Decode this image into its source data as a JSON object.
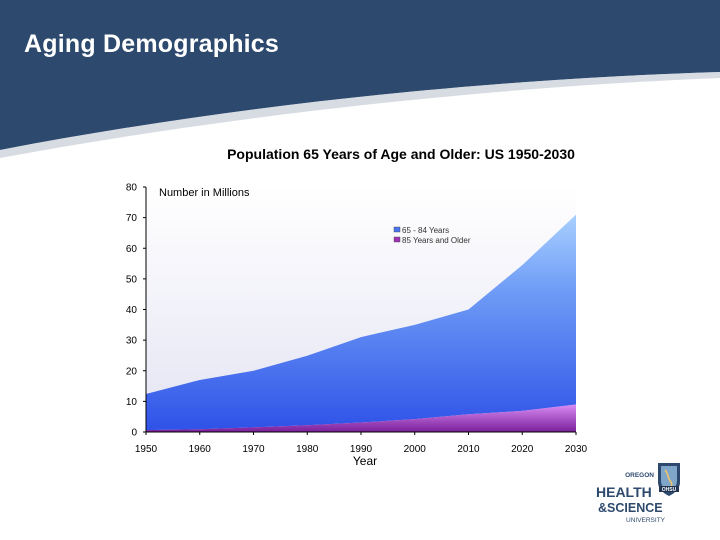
{
  "slide": {
    "title": "Aging Demographics"
  },
  "logo": {
    "name": "ohsu-logo",
    "text_lines": [
      "OREGON",
      "HEALTH",
      "&SCIENCE",
      "UNIVERSITY"
    ],
    "shield_text": "OHSU"
  },
  "colors": {
    "header": "#2d4a6e",
    "series_65_84": "#4a73ef",
    "series_85_plus": "#9b33b5",
    "plot_bg": "#f7f7fb"
  },
  "chart_data": {
    "type": "area",
    "stacked": true,
    "title": "Population 65 Years of Age and Older: US 1950-2030",
    "xlabel": "Year",
    "ylabel": "Number in Millions",
    "x": [
      1950,
      1960,
      1970,
      1980,
      1990,
      2000,
      2010,
      2020,
      2030
    ],
    "ylim": [
      0,
      80
    ],
    "yticks": [
      0,
      10,
      20,
      30,
      40,
      50,
      60,
      70,
      80
    ],
    "grid": false,
    "legend_position": "top-right",
    "series": [
      {
        "name": "65 - 84 Years",
        "values": [
          11.8,
          16.1,
          18.5,
          22.7,
          27.9,
          30.8,
          34.2,
          47.6,
          62.0
        ]
      },
      {
        "name": "85 Years and Older",
        "values": [
          0.6,
          0.9,
          1.5,
          2.2,
          3.1,
          4.2,
          5.8,
          6.9,
          9.0
        ]
      }
    ]
  }
}
